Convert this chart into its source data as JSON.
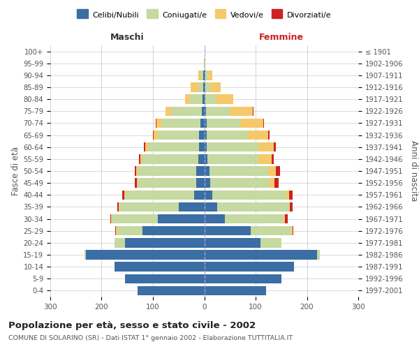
{
  "age_groups": [
    "0-4",
    "5-9",
    "10-14",
    "15-19",
    "20-24",
    "25-29",
    "30-34",
    "35-39",
    "40-44",
    "45-49",
    "50-54",
    "55-59",
    "60-64",
    "65-69",
    "70-74",
    "75-79",
    "80-84",
    "85-89",
    "90-94",
    "95-99",
    "100+"
  ],
  "birth_years": [
    "1997-2001",
    "1992-1996",
    "1987-1991",
    "1982-1986",
    "1977-1981",
    "1972-1976",
    "1967-1971",
    "1962-1966",
    "1957-1961",
    "1952-1956",
    "1947-1951",
    "1942-1946",
    "1937-1941",
    "1932-1936",
    "1927-1931",
    "1922-1926",
    "1917-1921",
    "1912-1916",
    "1907-1911",
    "1902-1906",
    "≤ 1901"
  ],
  "colors": {
    "celibe": "#3a6ea5",
    "coniugato": "#c5d9a0",
    "vedovo": "#f5c96a",
    "divorziato": "#cc2222"
  },
  "maschi": {
    "celibe": [
      130,
      155,
      175,
      230,
      155,
      120,
      90,
      50,
      20,
      15,
      15,
      12,
      10,
      10,
      8,
      5,
      3,
      2,
      2,
      0,
      0
    ],
    "coniugato": [
      0,
      0,
      0,
      3,
      20,
      50,
      90,
      115,
      135,
      115,
      115,
      110,
      100,
      80,
      75,
      60,
      25,
      10,
      5,
      0,
      0
    ],
    "vedovo": [
      0,
      0,
      0,
      0,
      0,
      2,
      1,
      1,
      1,
      1,
      2,
      3,
      5,
      8,
      10,
      10,
      10,
      15,
      5,
      1,
      0
    ],
    "divorziato": [
      0,
      0,
      0,
      0,
      0,
      1,
      2,
      4,
      4,
      4,
      4,
      2,
      3,
      2,
      2,
      0,
      0,
      0,
      0,
      0,
      0
    ]
  },
  "femmine": {
    "nubile": [
      120,
      150,
      175,
      220,
      110,
      90,
      40,
      25,
      15,
      12,
      10,
      6,
      5,
      5,
      5,
      4,
      2,
      2,
      2,
      0,
      0
    ],
    "coniugata": [
      0,
      0,
      0,
      5,
      40,
      80,
      115,
      140,
      145,
      115,
      115,
      100,
      100,
      80,
      65,
      45,
      20,
      10,
      5,
      1,
      0
    ],
    "vedova": [
      0,
      0,
      0,
      0,
      0,
      2,
      2,
      2,
      5,
      10,
      15,
      25,
      30,
      40,
      45,
      45,
      35,
      20,
      8,
      1,
      0
    ],
    "divorziata": [
      0,
      0,
      0,
      0,
      0,
      2,
      5,
      5,
      7,
      8,
      7,
      4,
      5,
      2,
      2,
      2,
      0,
      0,
      0,
      0,
      0
    ]
  },
  "title": "Popolazione per età, sesso e stato civile - 2002",
  "subtitle": "COMUNE DI SOLARINO (SR) - Dati ISTAT 1° gennaio 2002 - Elaborazione TUTTITALIA.IT",
  "ylabel_left": "Fasce di età",
  "ylabel_right": "Anni di nascita",
  "xlabel_left": "Maschi",
  "xlabel_right": "Femmine",
  "xlim": 300,
  "background_color": "#ffffff",
  "grid_color": "#cccccc",
  "legend_labels": [
    "Celibi/Nubili",
    "Coniugati/e",
    "Vedovi/e",
    "Divorziati/e"
  ]
}
